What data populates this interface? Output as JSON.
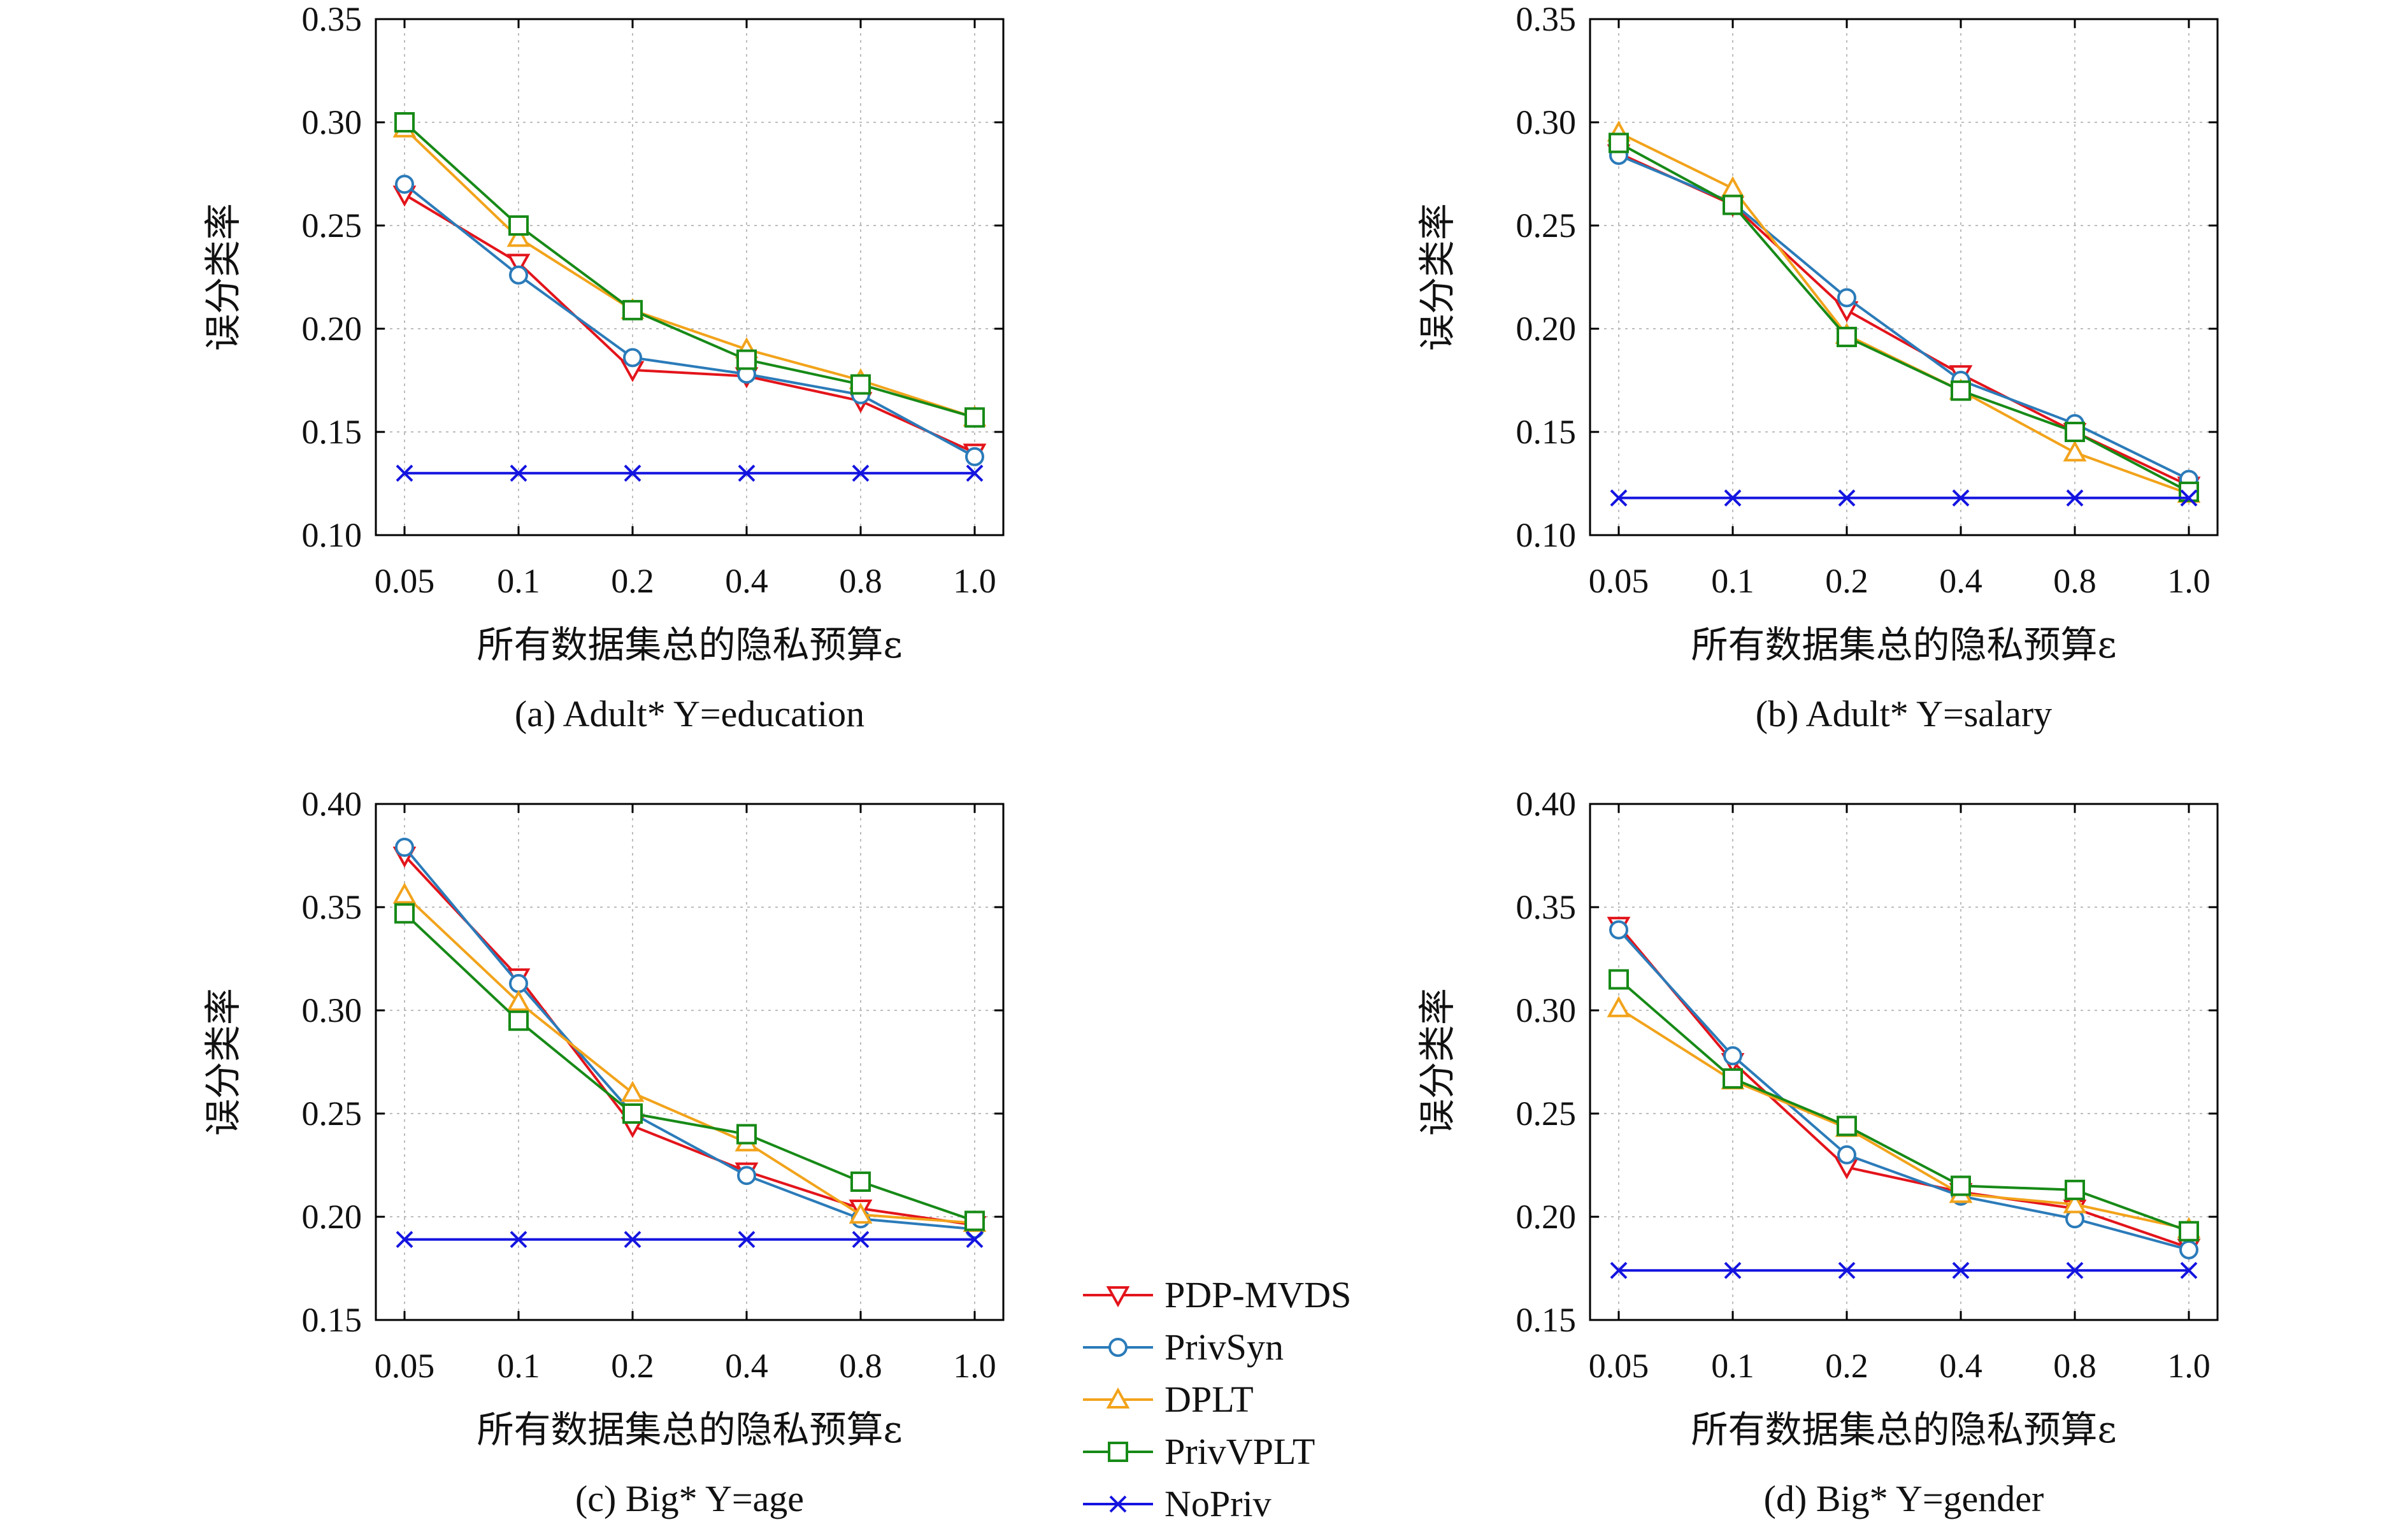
{
  "legend": [
    {
      "name": "PDP-MVDS",
      "color": "#e3141b",
      "marker": "triangle-down"
    },
    {
      "name": "PrivSyn",
      "color": "#2b7bb9",
      "marker": "circle"
    },
    {
      "name": "DPLT",
      "color": "#f2a31b",
      "marker": "triangle-up"
    },
    {
      "name": "PrivVPLT",
      "color": "#178a17",
      "marker": "square"
    },
    {
      "name": "NoPriv",
      "color": "#1414e0",
      "marker": "x"
    }
  ],
  "chart_data": [
    {
      "type": "line",
      "caption": "(a) Adult* Y=education",
      "xlabel": "所有数据集总的隐私预算ε",
      "ylabel": "误分类率",
      "categories": [
        "0.05",
        "0.1",
        "0.2",
        "0.4",
        "0.8",
        "1.0"
      ],
      "ylim": [
        0.1,
        0.35
      ],
      "yticks": [
        "0.10",
        "0.15",
        "0.20",
        "0.25",
        "0.30",
        "0.35"
      ],
      "grid": true,
      "series": [
        {
          "name": "PDP-MVDS",
          "values": [
            0.265,
            0.232,
            0.18,
            0.177,
            0.165,
            0.14
          ]
        },
        {
          "name": "PrivSyn",
          "values": [
            0.27,
            0.226,
            0.186,
            0.178,
            0.168,
            0.138
          ]
        },
        {
          "name": "DPLT",
          "values": [
            0.297,
            0.244,
            0.209,
            0.19,
            0.175,
            0.157
          ]
        },
        {
          "name": "PrivVPLT",
          "values": [
            0.3,
            0.25,
            0.209,
            0.185,
            0.173,
            0.157
          ]
        },
        {
          "name": "NoPriv",
          "values": [
            0.13,
            0.13,
            0.13,
            0.13,
            0.13,
            0.13
          ]
        }
      ]
    },
    {
      "type": "line",
      "caption": "(b) Adult* Y=salary",
      "xlabel": "所有数据集总的隐私预算ε",
      "ylabel": "误分类率",
      "categories": [
        "0.05",
        "0.1",
        "0.2",
        "0.4",
        "0.8",
        "1.0"
      ],
      "ylim": [
        0.1,
        0.35
      ],
      "yticks": [
        "0.10",
        "0.15",
        "0.20",
        "0.25",
        "0.30",
        "0.35"
      ],
      "grid": true,
      "series": [
        {
          "name": "PDP-MVDS",
          "values": [
            0.285,
            0.26,
            0.209,
            0.178,
            0.15,
            0.124
          ]
        },
        {
          "name": "PrivSyn",
          "values": [
            0.284,
            0.261,
            0.215,
            0.175,
            0.154,
            0.127
          ]
        },
        {
          "name": "DPLT",
          "values": [
            0.295,
            0.268,
            0.197,
            0.17,
            0.14,
            0.12
          ]
        },
        {
          "name": "PrivVPLT",
          "values": [
            0.29,
            0.26,
            0.196,
            0.17,
            0.15,
            0.121
          ]
        },
        {
          "name": "NoPriv",
          "values": [
            0.118,
            0.118,
            0.118,
            0.118,
            0.118,
            0.118
          ]
        }
      ]
    },
    {
      "type": "line",
      "caption": "(c) Big* Y=age",
      "xlabel": "所有数据集总的隐私预算ε",
      "ylabel": "误分类率",
      "categories": [
        "0.05",
        "0.1",
        "0.2",
        "0.4",
        "0.8",
        "1.0"
      ],
      "ylim": [
        0.15,
        0.4
      ],
      "yticks": [
        "0.15",
        "0.20",
        "0.25",
        "0.30",
        "0.35",
        "0.40"
      ],
      "grid": true,
      "series": [
        {
          "name": "PDP-MVDS",
          "values": [
            0.375,
            0.316,
            0.244,
            0.222,
            0.204,
            0.196
          ]
        },
        {
          "name": "PrivSyn",
          "values": [
            0.379,
            0.313,
            0.25,
            0.22,
            0.199,
            0.194
          ]
        },
        {
          "name": "DPLT",
          "values": [
            0.356,
            0.304,
            0.26,
            0.236,
            0.201,
            0.197
          ]
        },
        {
          "name": "PrivVPLT",
          "values": [
            0.347,
            0.295,
            0.25,
            0.24,
            0.217,
            0.198
          ]
        },
        {
          "name": "NoPriv",
          "values": [
            0.189,
            0.189,
            0.189,
            0.189,
            0.189,
            0.189
          ]
        }
      ]
    },
    {
      "type": "line",
      "caption": "(d) Big* Y=gender",
      "xlabel": "所有数据集总的隐私预算ε",
      "ylabel": "误分类率",
      "categories": [
        "0.05",
        "0.1",
        "0.2",
        "0.4",
        "0.8",
        "1.0"
      ],
      "ylim": [
        0.15,
        0.4
      ],
      "yticks": [
        "0.15",
        "0.20",
        "0.25",
        "0.30",
        "0.35",
        "0.40"
      ],
      "grid": true,
      "series": [
        {
          "name": "PDP-MVDS",
          "values": [
            0.341,
            0.275,
            0.224,
            0.212,
            0.204,
            0.185
          ]
        },
        {
          "name": "PrivSyn",
          "values": [
            0.339,
            0.278,
            0.23,
            0.21,
            0.199,
            0.184
          ]
        },
        {
          "name": "DPLT",
          "values": [
            0.301,
            0.266,
            0.243,
            0.211,
            0.206,
            0.194
          ]
        },
        {
          "name": "PrivVPLT",
          "values": [
            0.315,
            0.267,
            0.244,
            0.215,
            0.213,
            0.193
          ]
        },
        {
          "name": "NoPriv",
          "values": [
            0.174,
            0.174,
            0.174,
            0.174,
            0.174,
            0.174
          ]
        }
      ]
    }
  ]
}
